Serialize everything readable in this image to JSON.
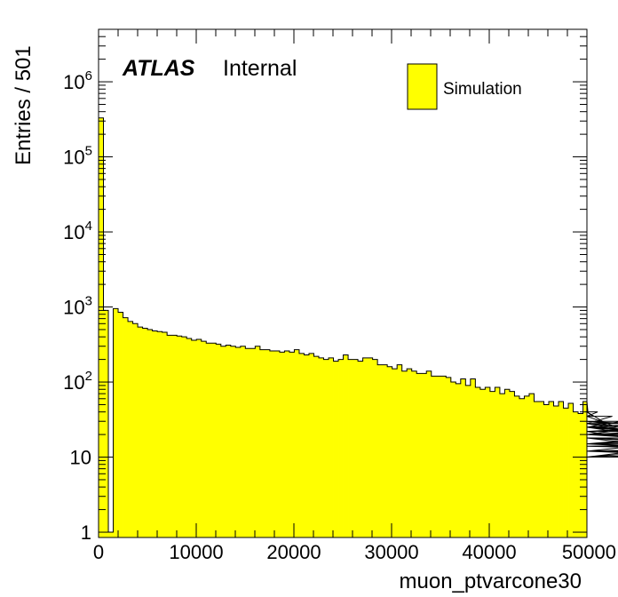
{
  "chart_data": {
    "type": "bar",
    "xlabel": "muon_ptvarcone30",
    "ylabel": "Entries / 501",
    "xlim": [
      0,
      50000
    ],
    "ylim": [
      0.85,
      5000000
    ],
    "log_y": true,
    "bin_width": 501,
    "x_ticks": [
      0,
      10000,
      20000,
      30000,
      40000,
      50000
    ],
    "y_ticks": [
      {
        "value": 1,
        "label": "1",
        "exp": ""
      },
      {
        "value": 10,
        "label": "10",
        "exp": ""
      },
      {
        "value": 100,
        "label": "10",
        "exp": "2"
      },
      {
        "value": 1000,
        "label": "10",
        "exp": "3"
      },
      {
        "value": 10000,
        "label": "10",
        "exp": "4"
      },
      {
        "value": 100000,
        "label": "10",
        "exp": "5"
      },
      {
        "value": 1000000,
        "label": "10",
        "exp": "6"
      }
    ],
    "annotation_bold": "ATLAS",
    "annotation_text": "Internal",
    "fill_color": "#ffff00",
    "edge_color": "#000000",
    "series": [
      {
        "name": "Simulation",
        "values": [
          330000,
          900,
          1,
          950,
          850,
          720,
          640,
          600,
          540,
          520,
          500,
          480,
          470,
          460,
          420,
          420,
          410,
          400,
          380,
          360,
          370,
          350,
          330,
          330,
          320,
          300,
          310,
          300,
          290,
          300,
          280,
          280,
          300,
          270,
          270,
          260,
          260,
          250,
          260,
          250,
          270,
          240,
          230,
          240,
          220,
          210,
          200,
          210,
          190,
          200,
          230,
          200,
          200,
          190,
          210,
          210,
          200,
          170,
          170,
          160,
          150,
          170,
          140,
          150,
          140,
          130,
          130,
          140,
          120,
          120,
          120,
          115,
          100,
          95,
          110,
          90,
          110,
          85,
          80,
          85,
          75,
          85,
          70,
          80,
          75,
          65,
          60,
          65,
          70,
          55,
          55,
          50,
          55,
          48,
          55,
          45,
          52,
          40,
          38,
          55,
          40,
          35,
          40,
          30,
          28,
          35,
          25,
          30,
          28,
          25,
          20,
          25,
          28,
          20,
          22,
          25,
          25,
          22,
          25,
          20,
          18,
          15,
          20,
          22,
          12,
          12,
          18,
          15,
          18,
          15,
          12,
          10,
          18,
          10,
          15,
          20,
          14,
          15,
          12,
          12,
          14,
          12,
          10,
          12,
          10
        ]
      }
    ],
    "legend_position": "top-right"
  }
}
